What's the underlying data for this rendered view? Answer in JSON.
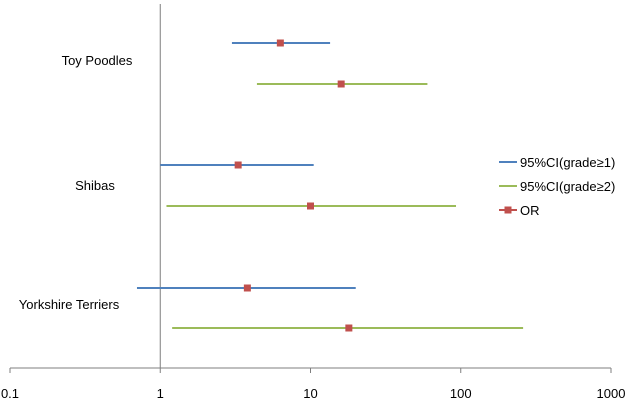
{
  "chart_data": {
    "type": "forest",
    "x_scale": "log",
    "xlim": [
      0.1,
      1000
    ],
    "x_ticks": [
      "0.1",
      "1",
      "10",
      "100",
      "1000"
    ],
    "reference_line_x": 1,
    "grid": false,
    "legend_position": "right",
    "categories": [
      "Toy Poodles",
      "Shibas",
      "Yorkshire Terriers"
    ],
    "series": [
      {
        "name": "95%CI(grade≥1)",
        "color": "#4F81BD",
        "marker_color": "#C0504D",
        "rows": [
          {
            "category": "Toy Poodles",
            "low": 3.0,
            "high": 13.5,
            "or": 6.3
          },
          {
            "category": "Shibas",
            "low": 1.0,
            "high": 10.5,
            "or": 3.3
          },
          {
            "category": "Yorkshire Terriers",
            "low": 0.7,
            "high": 20.0,
            "or": 3.8
          }
        ]
      },
      {
        "name": "95%CI(grade≥2)",
        "color": "#9BBB59",
        "marker_color": "#C0504D",
        "rows": [
          {
            "category": "Toy Poodles",
            "low": 4.4,
            "high": 60.0,
            "or": 16.0
          },
          {
            "category": "Shibas",
            "low": 1.1,
            "high": 93.0,
            "or": 10.0
          },
          {
            "category": "Yorkshire Terriers",
            "low": 1.2,
            "high": 260.0,
            "or": 18.0
          }
        ]
      }
    ],
    "or_legend": {
      "name": "OR",
      "color": "#C0504D"
    }
  }
}
